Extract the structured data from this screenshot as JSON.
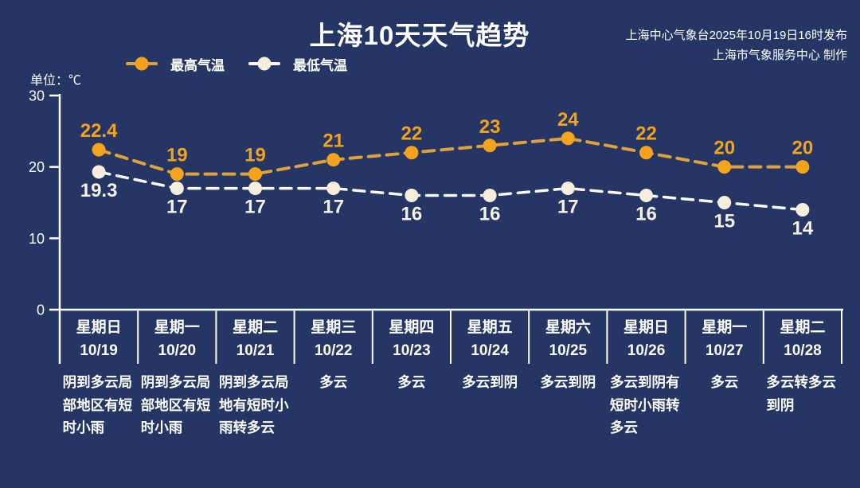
{
  "header": {
    "title": "上海10天天气趋势",
    "publisher_line1": "上海中心气象台2025年10月19日16时发布",
    "publisher_line2": "上海市气象服务中心 制作"
  },
  "unit_label": "单位：℃",
  "legend": [
    {
      "label": "最高气温",
      "dot_color": "#f4a41c",
      "line_color": "#dfa13d"
    },
    {
      "label": "最低气温",
      "dot_color": "#f5eedd",
      "line_color": "#fbfaf6"
    }
  ],
  "chart_data": {
    "type": "line",
    "title": "上海10天天气趋势",
    "ylabel": "单位：℃",
    "ylim": [
      0,
      30
    ],
    "yticks": [
      0,
      10,
      20,
      30
    ],
    "grid": false,
    "legend_position": "top-left",
    "line_style": "dashed",
    "x": [
      "10/19",
      "10/20",
      "10/21",
      "10/22",
      "10/23",
      "10/24",
      "10/25",
      "10/26",
      "10/27",
      "10/28"
    ],
    "series": [
      {
        "name": "最高气温",
        "values": [
          22.4,
          19,
          19,
          21,
          22,
          23,
          24,
          22,
          20,
          20
        ],
        "dot_color": "#f4a41c",
        "line_color": "#dfa13d",
        "label_color": "#f2a31d",
        "label_side": "above"
      },
      {
        "name": "最低气温",
        "values": [
          19.3,
          17,
          17,
          17,
          16,
          16,
          17,
          16,
          15,
          14
        ],
        "dot_color": "#f5eedd",
        "line_color": "#fbfaf6",
        "label_color": "#f6f1e6",
        "label_side": "below"
      }
    ]
  },
  "days": [
    {
      "weekday": "星期日",
      "date": "10/19",
      "weather": "阴到多云局部地区有短时小雨"
    },
    {
      "weekday": "星期一",
      "date": "10/20",
      "weather": "阴到多云局部地区有短时小雨"
    },
    {
      "weekday": "星期二",
      "date": "10/21",
      "weather": "阴到多云局地有短时小雨转多云"
    },
    {
      "weekday": "星期三",
      "date": "10/22",
      "weather": "多云"
    },
    {
      "weekday": "星期四",
      "date": "10/23",
      "weather": "多云"
    },
    {
      "weekday": "星期五",
      "date": "10/24",
      "weather": "多云到阴"
    },
    {
      "weekday": "星期六",
      "date": "10/25",
      "weather": "多云到阴"
    },
    {
      "weekday": "星期日",
      "date": "10/26",
      "weather": "多云到阴有短时小雨转多云"
    },
    {
      "weekday": "星期一",
      "date": "10/27",
      "weather": "多云"
    },
    {
      "weekday": "星期二",
      "date": "10/28",
      "weather": "多云转多云到阴"
    }
  ],
  "colors": {
    "background": "#253564",
    "axis": "#ffffff",
    "text": "#ffffff",
    "accent_orange": "#f4a41c",
    "cream": "#f5eedd"
  }
}
